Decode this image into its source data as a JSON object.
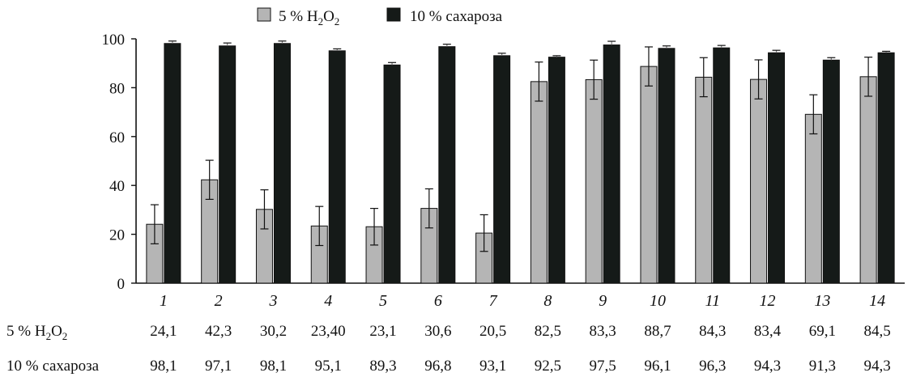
{
  "chart_data": {
    "type": "bar",
    "categories": [
      "1",
      "2",
      "3",
      "4",
      "5",
      "6",
      "7",
      "8",
      "9",
      "10",
      "11",
      "12",
      "13",
      "14"
    ],
    "series": [
      {
        "name": "5 % H2O2",
        "color": "#b5b5b5",
        "values": [
          24.1,
          42.3,
          30.2,
          23.4,
          23.1,
          30.6,
          20.5,
          82.5,
          83.3,
          88.7,
          84.3,
          83.4,
          69.1,
          84.5
        ],
        "errors": [
          8,
          8,
          8,
          8,
          7.5,
          8,
          7.5,
          8,
          8,
          8,
          8,
          8,
          8,
          8
        ],
        "labels": [
          "24,1",
          "42,3",
          "30,2",
          "23,40",
          "23,1",
          "30,6",
          "20,5",
          "82,5",
          "83,3",
          "88,7",
          "84,3",
          "83,4",
          "69,1",
          "84,5"
        ]
      },
      {
        "name": "10 % сахароза",
        "color": "#151a18",
        "values": [
          98.1,
          97.1,
          98.1,
          95.1,
          89.3,
          96.8,
          93.1,
          92.5,
          97.5,
          96.1,
          96.3,
          94.3,
          91.3,
          94.3
        ],
        "errors": [
          1,
          1.2,
          1,
          0.8,
          1,
          1,
          1,
          0.6,
          1.5,
          1,
          1,
          1,
          1,
          0.6
        ],
        "labels": [
          "98,1",
          "97,1",
          "98,1",
          "95,1",
          "89,3",
          "96,8",
          "93,1",
          "92,5",
          "97,5",
          "96,1",
          "96,3",
          "94,3",
          "91,3",
          "94,3"
        ]
      }
    ],
    "ylim": [
      0,
      100
    ],
    "yticks": [
      "0",
      "20",
      "40",
      "60",
      "80",
      "100"
    ],
    "legend": {
      "position": "top",
      "items": [
        {
          "base": "5 % H",
          "sub1": "2",
          "mid": "O",
          "sub2": "2"
        },
        {
          "text": "10 % сахароза"
        }
      ]
    },
    "table_rows": [
      {
        "label_base": "5 % H",
        "label_sub1": "2",
        "label_mid": "O",
        "label_sub2": "2"
      },
      {
        "label": "10 % сахароза"
      }
    ]
  }
}
